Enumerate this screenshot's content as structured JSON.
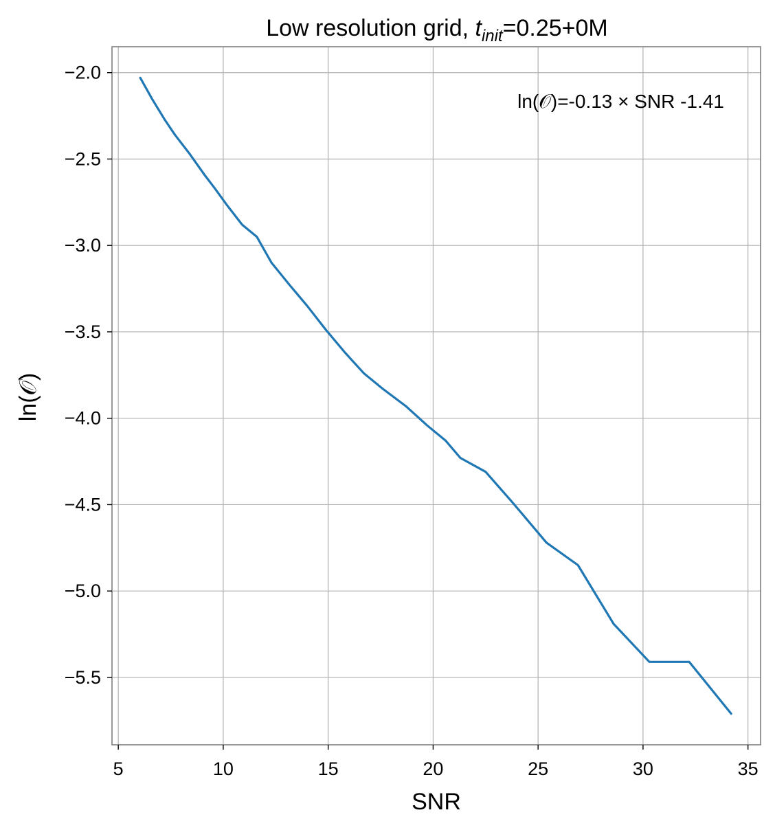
{
  "chart_data": {
    "type": "line",
    "title_prefix": "Low resolution grid, ",
    "title_var": "t",
    "title_sub": "init",
    "title_suffix": "=0.25+0M",
    "xlabel": "SNR",
    "ylabel": "ln(𝒪)",
    "annotation": "ln(𝒪)=-0.13 × SNR -1.41",
    "xlim": [
      4.7,
      35.6
    ],
    "ylim": [
      -5.89,
      -1.85
    ],
    "xticks": [
      5,
      10,
      15,
      20,
      25,
      30,
      35
    ],
    "xtick_labels": [
      "5",
      "10",
      "15",
      "20",
      "25",
      "30",
      "35"
    ],
    "yticks": [
      -2.0,
      -2.5,
      -3.0,
      -3.5,
      -4.0,
      -4.5,
      -5.0,
      -5.5
    ],
    "ytick_labels": [
      "−2.0",
      "−2.5",
      "−3.0",
      "−3.5",
      "−4.0",
      "−4.5",
      "−5.0",
      "−5.5"
    ],
    "grid": true,
    "series": [
      {
        "color": "#1f77b4",
        "x": [
          6.05,
          6.6,
          7.2,
          7.7,
          8.4,
          9.1,
          9.6,
          10.2,
          10.9,
          11.6,
          12.3,
          13.1,
          14.0,
          14.9,
          15.8,
          16.7,
          17.6,
          18.7,
          19.7,
          20.6,
          21.3,
          22.5,
          23.8,
          25.4,
          26.9,
          28.6,
          30.3,
          31.2,
          32.2,
          34.2
        ],
        "y": [
          -2.03,
          -2.15,
          -2.27,
          -2.36,
          -2.47,
          -2.59,
          -2.67,
          -2.77,
          -2.88,
          -2.95,
          -3.1,
          -3.22,
          -3.35,
          -3.49,
          -3.62,
          -3.74,
          -3.83,
          -3.93,
          -4.04,
          -4.13,
          -4.23,
          -4.31,
          -4.49,
          -4.72,
          -4.85,
          -5.19,
          -5.41,
          -5.41,
          -5.41,
          -5.71
        ]
      }
    ]
  }
}
